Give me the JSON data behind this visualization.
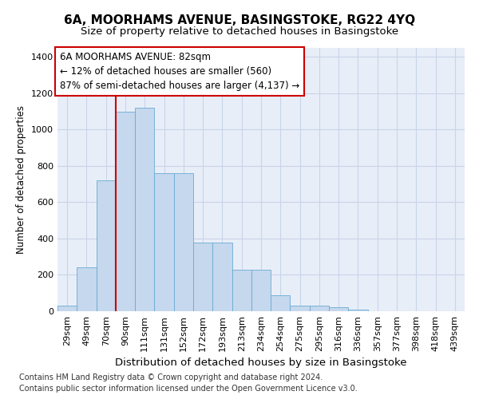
{
  "title1": "6A, MOORHAMS AVENUE, BASINGSTOKE, RG22 4YQ",
  "title2": "Size of property relative to detached houses in Basingstoke",
  "xlabel": "Distribution of detached houses by size in Basingstoke",
  "ylabel": "Number of detached properties",
  "footnote1": "Contains HM Land Registry data © Crown copyright and database right 2024.",
  "footnote2": "Contains public sector information licensed under the Open Government Licence v3.0.",
  "categories": [
    "29sqm",
    "49sqm",
    "70sqm",
    "90sqm",
    "111sqm",
    "131sqm",
    "152sqm",
    "172sqm",
    "193sqm",
    "213sqm",
    "234sqm",
    "254sqm",
    "275sqm",
    "295sqm",
    "316sqm",
    "336sqm",
    "357sqm",
    "377sqm",
    "398sqm",
    "418sqm",
    "439sqm"
  ],
  "values": [
    30,
    240,
    720,
    1100,
    1120,
    760,
    760,
    380,
    380,
    230,
    230,
    90,
    30,
    30,
    20,
    10,
    0,
    0,
    0,
    0,
    0
  ],
  "bar_color": "#c5d8ed",
  "bar_edge_color": "#6aaad4",
  "grid_color": "#c8d4e8",
  "background_color": "#e8eef8",
  "annotation_line1": "6A MOORHAMS AVENUE: 82sqm",
  "annotation_line2": "← 12% of detached houses are smaller (560)",
  "annotation_line3": "87% of semi-detached houses are larger (4,137) →",
  "vline_x": 2.5,
  "vline_color": "#cc0000",
  "annotation_box_facecolor": "#ffffff",
  "annotation_box_edgecolor": "#cc0000",
  "ylim": [
    0,
    1450
  ],
  "yticks": [
    0,
    200,
    400,
    600,
    800,
    1000,
    1200,
    1400
  ],
  "title1_fontsize": 11,
  "title2_fontsize": 9.5,
  "ylabel_fontsize": 8.5,
  "xlabel_fontsize": 9.5,
  "tick_fontsize": 8,
  "annot_fontsize": 8.5,
  "footnote_fontsize": 7
}
